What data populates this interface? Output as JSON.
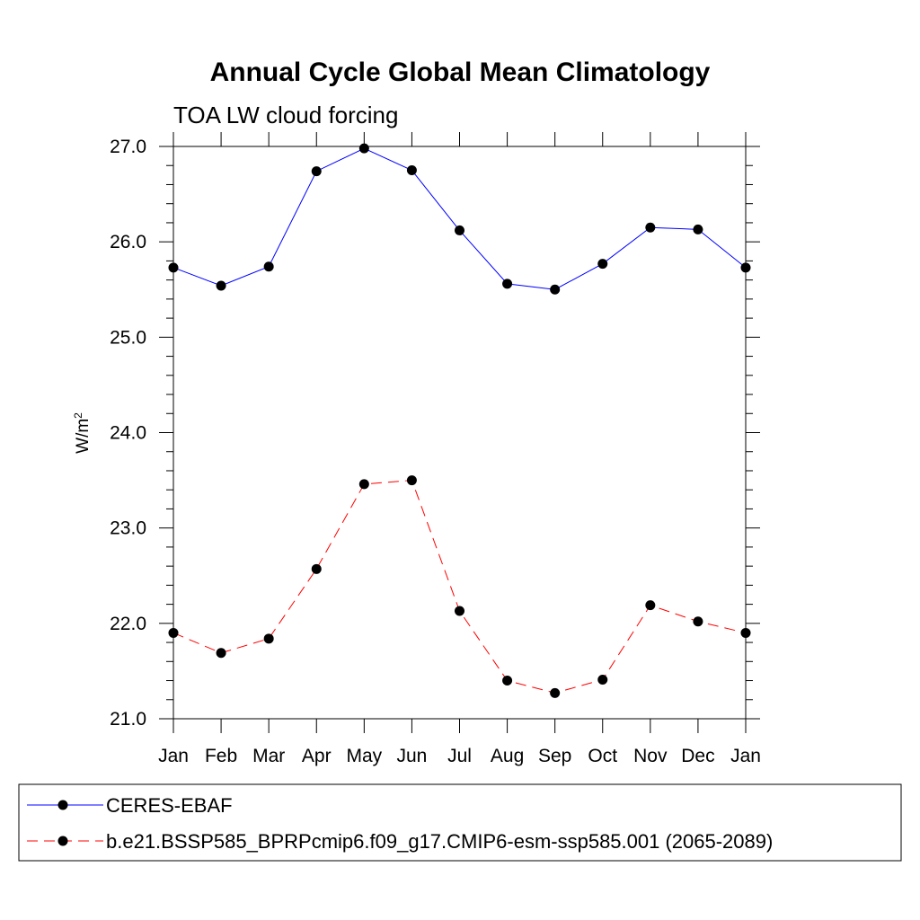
{
  "chart_data": {
    "type": "line",
    "title": "Annual Cycle Global Mean Climatology",
    "subtitle": "TOA LW cloud forcing",
    "xlabel": "",
    "ylabel": "W/m",
    "ylabel_sup": "2",
    "categories": [
      "Jan",
      "Feb",
      "Mar",
      "Apr",
      "May",
      "Jun",
      "Jul",
      "Aug",
      "Sep",
      "Oct",
      "Nov",
      "Dec",
      "Jan"
    ],
    "ylim": [
      21.0,
      27.0
    ],
    "yticks": [
      "21.0",
      "22.0",
      "23.0",
      "24.0",
      "25.0",
      "26.0",
      "27.0"
    ],
    "ytick_values": [
      21.0,
      22.0,
      23.0,
      24.0,
      25.0,
      26.0,
      27.0
    ],
    "grid": false,
    "legend_position": "bottom",
    "series": [
      {
        "name": "CERES-EBAF",
        "color": "#0000ff",
        "dash": "solid",
        "values": [
          25.73,
          25.54,
          25.74,
          26.74,
          26.98,
          26.75,
          26.12,
          25.56,
          25.5,
          25.77,
          26.15,
          26.13,
          25.73
        ]
      },
      {
        "name": "b.e21.BSSP585_BPRPcmip6.f09_g17.CMIP6-esm-ssp585.001 (2065-2089)",
        "color": "#ff0000",
        "dash": "dashed",
        "values": [
          21.9,
          21.69,
          21.84,
          22.57,
          23.46,
          23.5,
          22.13,
          21.4,
          21.27,
          21.41,
          22.19,
          22.02,
          21.9
        ]
      }
    ]
  }
}
